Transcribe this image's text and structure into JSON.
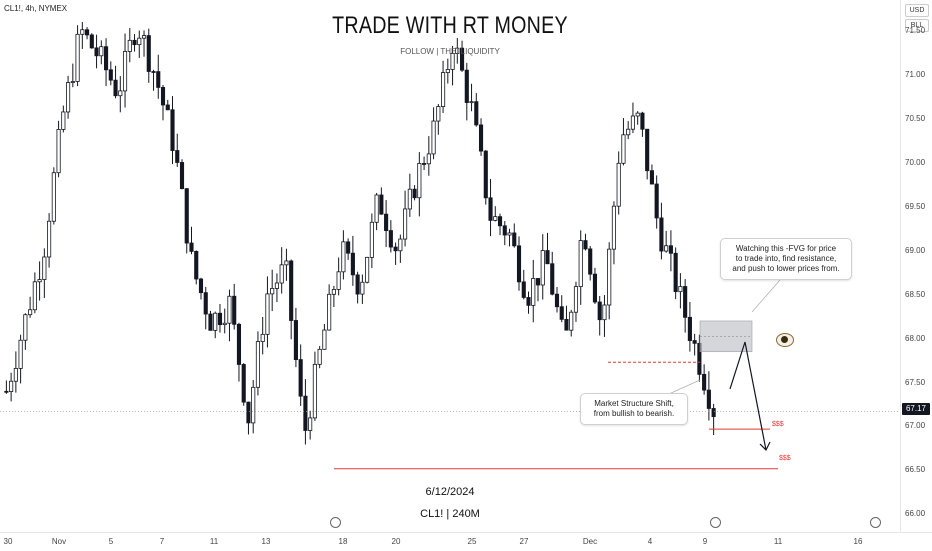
{
  "header": {
    "symbol": "CL1!, 4h, NYMEX",
    "title": "TRADE WITH RT MONEY",
    "subtitle": "FOLLOW  |  THE|  LIQUIDITY",
    "date": "6/12/2024",
    "timeframe": "CL1! | 240M"
  },
  "currency": [
    "USD",
    "BLL"
  ],
  "current_price": "67.17",
  "annotations": {
    "fvg_note": [
      "Watching this -FVG for price",
      "to trade into, find resistance,",
      "and push to lower prices from."
    ],
    "mss_note": [
      "Market Structure Shift,",
      "from bullish to bearish."
    ],
    "liquidity_label_1": "$$$",
    "liquidity_label_2": "$$$"
  },
  "colors": {
    "bull": "#ffffff",
    "bear": "#131722",
    "outline": "#131722",
    "liquidity_line": "#e53935",
    "fvg_box": "#b0b4bc"
  },
  "icons": [
    "eye-icon",
    "session-arrow-icon",
    "lightning-icon"
  ],
  "chart_data": {
    "type": "candlestick",
    "symbol": "CL1!",
    "interval": "4h",
    "exchange": "NYMEX",
    "ylim": [
      65.8,
      71.85
    ],
    "y_ticks": [
      "71.50",
      "71.00",
      "70.50",
      "70.00",
      "69.50",
      "69.00",
      "68.50",
      "68.00",
      "67.50",
      "67.00",
      "66.50",
      "66.00"
    ],
    "x_ticks": [
      "30",
      "Nov",
      "5",
      "7",
      "11",
      "13",
      "18",
      "20",
      "25",
      "27",
      "Dec",
      "4",
      "9",
      "11",
      "16"
    ],
    "current_price": 67.17,
    "levels": {
      "liquidity_low_1": 66.52,
      "liquidity_low_2": 66.97,
      "mss_level": 67.73,
      "fvg_top": 68.2,
      "fvg_bottom": 67.85
    },
    "path_points": [
      67.4,
      68.2,
      69.0,
      70.5,
      71.5,
      71.2,
      70.8,
      71.6,
      71.0,
      70.2,
      68.8,
      68.2,
      68.4,
      67.1,
      68.5,
      68.8,
      66.9,
      68.0,
      69.0,
      68.6,
      69.6,
      69.0,
      69.8,
      70.4,
      71.4,
      70.6,
      69.4,
      69.2,
      68.5,
      68.9,
      67.9,
      69.3,
      68.1,
      70.3,
      70.5,
      69.3,
      68.6,
      67.9,
      67.2
    ]
  }
}
